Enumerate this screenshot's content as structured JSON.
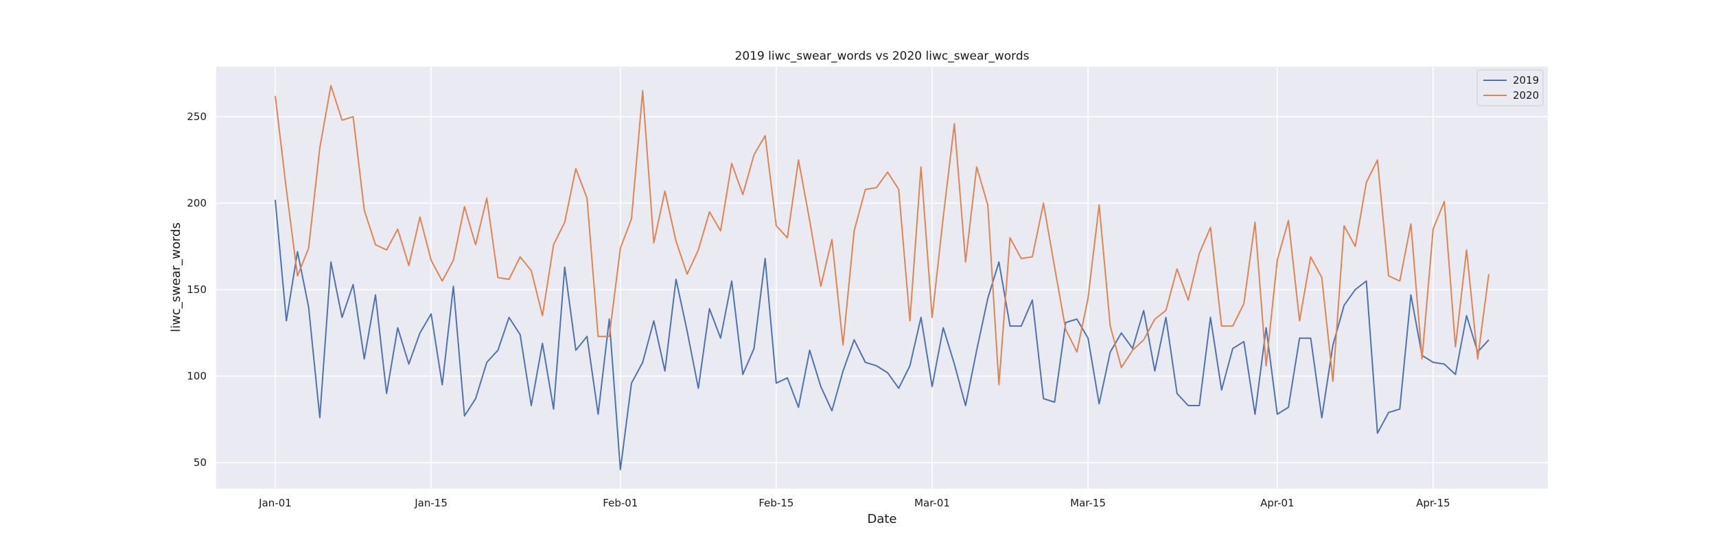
{
  "chart_data": {
    "type": "line",
    "title": "2019 liwc_swear_words vs 2020 liwc_swear_words",
    "xlabel": "Date",
    "ylabel": "liwc_swear_words",
    "x_start": "Jan-01",
    "x_tick_labels": [
      "Jan-01",
      "Jan-15",
      "Feb-01",
      "Feb-15",
      "Mar-01",
      "Mar-15",
      "Apr-01",
      "Apr-15"
    ],
    "x_tick_positions": [
      0,
      14,
      31,
      45,
      59,
      73,
      90,
      104
    ],
    "y_ticks": [
      50,
      100,
      150,
      200,
      250
    ],
    "xlim": [
      -5.3,
      114.3
    ],
    "ylim": [
      35,
      279
    ],
    "grid": true,
    "legend_position": "top-right",
    "series": [
      {
        "name": "2019",
        "color": "#4c72b0",
        "values": [
          202,
          132,
          172,
          140,
          76,
          166,
          134,
          153,
          110,
          147,
          90,
          128,
          107,
          125,
          136,
          95,
          152,
          77,
          87,
          108,
          115,
          134,
          124,
          83,
          119,
          81,
          163,
          115,
          123,
          78,
          133,
          46,
          96,
          108,
          132,
          103,
          156,
          126,
          93,
          139,
          122,
          155,
          101,
          116,
          168,
          96,
          99,
          82,
          115,
          94,
          80,
          103,
          121,
          108,
          106,
          102,
          93,
          106,
          134,
          94,
          128,
          107,
          83,
          115,
          145,
          166,
          129,
          129,
          144,
          87,
          85,
          131,
          133,
          122,
          84,
          114,
          125,
          116,
          138,
          103,
          134,
          90,
          83,
          83,
          134,
          92,
          116,
          120,
          78,
          128,
          78,
          82,
          122,
          122,
          76,
          118,
          141,
          150,
          155,
          67,
          79,
          81,
          147,
          112,
          108,
          107,
          101,
          135,
          114,
          121
        ]
      },
      {
        "name": "2020",
        "color": "#dd8452",
        "values": [
          262,
          208,
          158,
          174,
          232,
          268,
          248,
          250,
          196,
          176,
          173,
          185,
          164,
          192,
          167,
          155,
          167,
          198,
          176,
          203,
          157,
          156,
          169,
          161,
          135,
          176,
          189,
          220,
          203,
          123,
          123,
          174,
          191,
          265,
          177,
          207,
          178,
          159,
          173,
          195,
          184,
          223,
          205,
          228,
          239,
          187,
          180,
          225,
          190,
          152,
          179,
          118,
          184,
          208,
          209,
          218,
          208,
          132,
          221,
          134,
          192,
          246,
          166,
          221,
          199,
          95,
          180,
          168,
          169,
          200,
          163,
          127,
          114,
          145,
          199,
          129,
          105,
          115,
          121,
          133,
          138,
          162,
          144,
          171,
          186,
          129,
          129,
          142,
          189,
          106,
          167,
          190,
          132,
          169,
          157,
          97,
          187,
          175,
          212,
          225,
          158,
          155,
          188,
          110,
          185,
          201,
          117,
          173,
          110,
          159
        ]
      }
    ]
  }
}
